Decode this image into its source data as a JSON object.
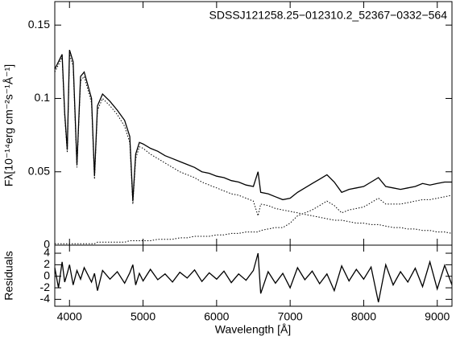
{
  "chart_data": [
    {
      "type": "line",
      "title": "SDSSJ121258.25−012310.2_52367−0332−564",
      "ylabel": "Fλ[10⁻¹⁴erg cm⁻²s⁻¹Å⁻¹]",
      "x": [
        3800,
        3850,
        3900,
        3935,
        3970,
        4000,
        4050,
        4101,
        4150,
        4200,
        4300,
        4340,
        4380,
        4450,
        4550,
        4650,
        4750,
        4820,
        4861,
        4900,
        4950,
        5000,
        5100,
        5200,
        5300,
        5400,
        5500,
        5600,
        5700,
        5800,
        5900,
        6000,
        6100,
        6200,
        6300,
        6400,
        6500,
        6563,
        6600,
        6700,
        6800,
        6900,
        7000,
        7100,
        7200,
        7300,
        7400,
        7500,
        7600,
        7700,
        7800,
        7900,
        8000,
        8100,
        8200,
        8300,
        8400,
        8500,
        8600,
        8700,
        8800,
        8900,
        9000,
        9100,
        9200
      ],
      "series": [
        {
          "color": "#000000",
          "style": "solid",
          "values": [
            0.12,
            0.125,
            0.13,
            0.09,
            0.065,
            0.133,
            0.125,
            0.055,
            0.115,
            0.118,
            0.1,
            0.047,
            0.095,
            0.103,
            0.098,
            0.092,
            0.085,
            0.074,
            0.03,
            0.062,
            0.07,
            0.069,
            0.066,
            0.064,
            0.061,
            0.059,
            0.057,
            0.055,
            0.053,
            0.05,
            0.049,
            0.047,
            0.046,
            0.044,
            0.043,
            0.041,
            0.04,
            0.05,
            0.036,
            0.035,
            0.033,
            0.031,
            0.032,
            0.036,
            0.039,
            0.042,
            0.045,
            0.048,
            0.043,
            0.036,
            0.038,
            0.039,
            0.04,
            0.043,
            0.046,
            0.04,
            0.039,
            0.038,
            0.039,
            0.04,
            0.042,
            0.041,
            0.042,
            0.043,
            0.043
          ]
        },
        {
          "color": "#000000",
          "style": "dotted",
          "values": [
            0.118,
            0.123,
            0.128,
            0.088,
            0.063,
            0.13,
            0.122,
            0.053,
            0.112,
            0.115,
            0.097,
            0.045,
            0.092,
            0.1,
            0.095,
            0.089,
            0.081,
            0.07,
            0.028,
            0.059,
            0.067,
            0.066,
            0.062,
            0.059,
            0.056,
            0.053,
            0.05,
            0.048,
            0.046,
            0.043,
            0.041,
            0.039,
            0.037,
            0.035,
            0.034,
            0.032,
            0.03,
            0.02,
            0.028,
            0.027,
            0.025,
            0.024,
            0.023,
            0.022,
            0.021,
            0.02,
            0.019,
            0.018,
            0.017,
            0.017,
            0.016,
            0.015,
            0.015,
            0.014,
            0.014,
            0.013,
            0.012,
            0.012,
            0.011,
            0.011,
            0.01,
            0.01,
            0.009,
            0.009,
            0.008
          ]
        },
        {
          "color": "#000000",
          "style": "dotted",
          "values": [
            0.001,
            0.001,
            0.001,
            0.001,
            0.001,
            0.001,
            0.001,
            0.001,
            0.001,
            0.001,
            0.001,
            0.001,
            0.002,
            0.002,
            0.002,
            0.002,
            0.002,
            0.003,
            0.003,
            0.003,
            0.003,
            0.003,
            0.003,
            0.004,
            0.004,
            0.004,
            0.005,
            0.005,
            0.006,
            0.006,
            0.006,
            0.007,
            0.007,
            0.008,
            0.008,
            0.009,
            0.009,
            0.009,
            0.01,
            0.011,
            0.012,
            0.012,
            0.015,
            0.02,
            0.022,
            0.024,
            0.027,
            0.03,
            0.027,
            0.022,
            0.024,
            0.025,
            0.026,
            0.029,
            0.032,
            0.028,
            0.028,
            0.028,
            0.029,
            0.03,
            0.031,
            0.031,
            0.032,
            0.033,
            0.034
          ]
        }
      ],
      "xlim": [
        3800,
        9200
      ],
      "ylim": [
        0,
        0.166
      ],
      "yticks": [
        0,
        0.05,
        0.1,
        0.15
      ]
    },
    {
      "type": "line",
      "ylabel": "Residuals",
      "xlabel": "Wavelength [Å]",
      "x": [
        3800,
        3850,
        3900,
        3935,
        3970,
        4000,
        4050,
        4101,
        4150,
        4200,
        4300,
        4340,
        4380,
        4450,
        4550,
        4650,
        4750,
        4820,
        4861,
        4900,
        4950,
        5000,
        5100,
        5200,
        5300,
        5400,
        5500,
        5600,
        5700,
        5800,
        5900,
        6000,
        6100,
        6200,
        6300,
        6400,
        6500,
        6563,
        6600,
        6700,
        6800,
        6900,
        7000,
        7100,
        7200,
        7300,
        7400,
        7500,
        7600,
        7700,
        7800,
        7900,
        8000,
        8100,
        8200,
        8300,
        8400,
        8500,
        8600,
        8700,
        8800,
        8900,
        9000,
        9100,
        9200
      ],
      "series": [
        {
          "color": "#000000",
          "style": "solid",
          "values": [
            1.5,
            -2,
            2.5,
            -1,
            0.5,
            2,
            -1.5,
            1,
            -0.5,
            1.5,
            -1,
            0.5,
            -2.5,
            1,
            -0.5,
            0.8,
            -1.2,
            0.6,
            2,
            -1.5,
            0.5,
            -0.8,
            1.2,
            -0.6,
            0.4,
            -1,
            0.7,
            -0.3,
            1.1,
            -0.9,
            0.6,
            -0.5,
            0.9,
            -1.1,
            0.4,
            -0.7,
            1,
            4,
            -3,
            0.8,
            -1.2,
            0.5,
            -2,
            1.5,
            -0.6,
            0.9,
            -1.3,
            0.4,
            -2.5,
            1.8,
            -0.8,
            1.2,
            -0.5,
            1.6,
            -4.5,
            2,
            -1.5,
            0.8,
            -1,
            1.4,
            -1.8,
            2.5,
            -2.2,
            1.9,
            -1.5
          ]
        }
      ],
      "xlim": [
        3800,
        9200
      ],
      "ylim": [
        -5.2,
        5.4
      ],
      "yticks": [
        -4,
        -2,
        0,
        2,
        4
      ],
      "xticks": [
        4000,
        5000,
        6000,
        7000,
        8000,
        9000
      ]
    }
  ]
}
